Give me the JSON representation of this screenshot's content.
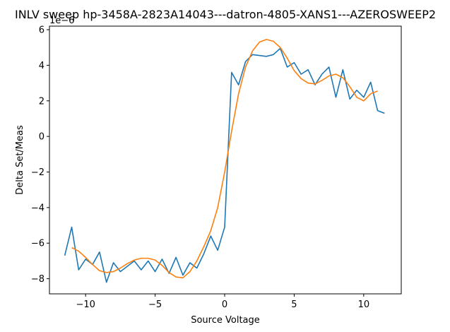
{
  "chart_data": {
    "type": "line",
    "title": "INLV sweep hp-3458A-2823A14043---datron-4805-XANS1---AZEROSWEEP2",
    "xlabel": "Source Voltage",
    "ylabel": "Delta Set/Meas",
    "offset_text": "1e−6",
    "y_scale": 1e-06,
    "xlim": [
      -12.6,
      12.7
    ],
    "ylim": [
      -8.85,
      6.2
    ],
    "x_ticks": [
      -10,
      -5,
      0,
      5,
      10
    ],
    "x_tick_labels": [
      "−10",
      "−5",
      "0",
      "5",
      "10"
    ],
    "y_ticks": [
      -8,
      -6,
      -4,
      -2,
      0,
      2,
      4,
      6
    ],
    "y_tick_labels": [
      "−8",
      "−6",
      "−4",
      "−2",
      "0",
      "2",
      "4",
      "6"
    ],
    "grid": false,
    "series": [
      {
        "color": "#1f77b4",
        "x": [
          -11.5,
          -11,
          -10.5,
          -10,
          -9.5,
          -9,
          -8.5,
          -8,
          -7.5,
          -7,
          -6.5,
          -6,
          -5.5,
          -5,
          -4.5,
          -4,
          -3.5,
          -3,
          -2.5,
          -2,
          -1.5,
          -1,
          -0.5,
          0,
          0.5,
          1,
          1.5,
          2,
          2.5,
          3,
          3.5,
          4,
          4.5,
          5,
          5.5,
          6,
          6.5,
          7,
          7.5,
          8,
          8.5,
          9,
          9.5,
          10,
          10.5,
          11,
          11.5
        ],
        "y": [
          -6.7,
          -5.1,
          -7.5,
          -6.9,
          -7.2,
          -6.5,
          -8.2,
          -7.1,
          -7.6,
          -7.3,
          -7.0,
          -7.5,
          -7.0,
          -7.6,
          -6.9,
          -7.7,
          -6.8,
          -7.8,
          -7.1,
          -7.4,
          -6.6,
          -5.6,
          -6.4,
          -5.1,
          3.6,
          2.9,
          4.2,
          4.6,
          4.55,
          4.5,
          4.6,
          4.95,
          3.9,
          4.15,
          3.5,
          3.75,
          2.9,
          3.5,
          3.9,
          2.2,
          3.75,
          2.1,
          2.6,
          2.2,
          3.05,
          1.45,
          1.3
        ]
      },
      {
        "color": "#ff7f0e",
        "x": [
          -11,
          -10.5,
          -10,
          -9.5,
          -9,
          -8.5,
          -8,
          -7.5,
          -7,
          -6.5,
          -6,
          -5.5,
          -5,
          -4.5,
          -4,
          -3.5,
          -3,
          -2.5,
          -2,
          -1.5,
          -1,
          -0.5,
          0,
          0.5,
          1,
          1.5,
          2,
          2.5,
          3,
          3.5,
          4,
          4.5,
          5,
          5.5,
          6,
          6.5,
          7,
          7.5,
          8,
          8.5,
          9,
          9.5,
          10,
          10.5,
          11
        ],
        "y": [
          -6.25,
          -6.45,
          -6.8,
          -7.2,
          -7.55,
          -7.65,
          -7.6,
          -7.4,
          -7.15,
          -6.95,
          -6.85,
          -6.85,
          -6.95,
          -7.25,
          -7.65,
          -7.9,
          -7.95,
          -7.6,
          -7.0,
          -6.2,
          -5.3,
          -4.0,
          -2.0,
          0.3,
          2.4,
          3.9,
          4.8,
          5.3,
          5.45,
          5.35,
          5.0,
          4.4,
          3.7,
          3.25,
          3.0,
          2.95,
          3.15,
          3.4,
          3.5,
          3.3,
          2.8,
          2.2,
          2.0,
          2.4,
          2.55
        ]
      }
    ]
  }
}
